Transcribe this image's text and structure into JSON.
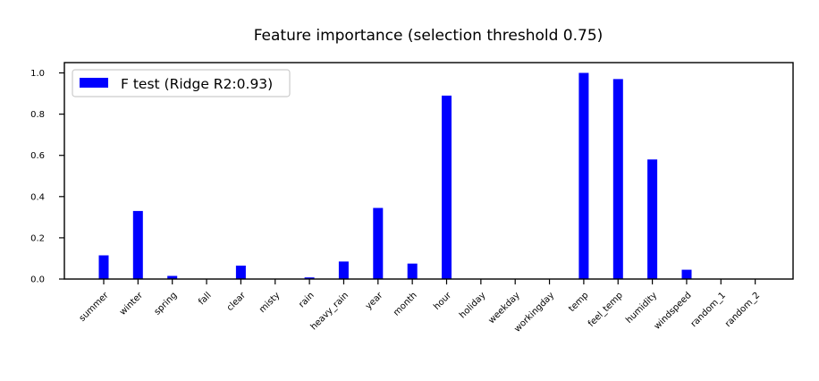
{
  "chart_data": {
    "type": "bar",
    "title": "Feature importance (selection threshold 0.75)",
    "xlabel": "",
    "ylabel": "",
    "categories": [
      "summer",
      "winter",
      "spring",
      "fall",
      "clear",
      "misty",
      "rain",
      "heavy_rain",
      "year",
      "month",
      "hour",
      "holiday",
      "weekday",
      "workingday",
      "temp",
      "feel_temp",
      "humidity",
      "windspeed",
      "random_1",
      "random_2"
    ],
    "series": [
      {
        "name": "F test (Ridge R2:0.93)",
        "color": "#0000ff",
        "values": [
          0.115,
          0.33,
          0.015,
          0.0,
          0.065,
          0.0,
          0.008,
          0.085,
          0.345,
          0.075,
          0.89,
          0.0,
          0.0,
          0.0,
          1.0,
          0.97,
          0.58,
          0.045,
          0.0,
          0.0
        ]
      }
    ],
    "ylim": [
      0,
      1.05
    ],
    "yticks": [
      "0.0",
      "0.2",
      "0.4",
      "0.6",
      "0.8",
      "1.0"
    ],
    "legend_position": "top-left",
    "grid": false
  }
}
